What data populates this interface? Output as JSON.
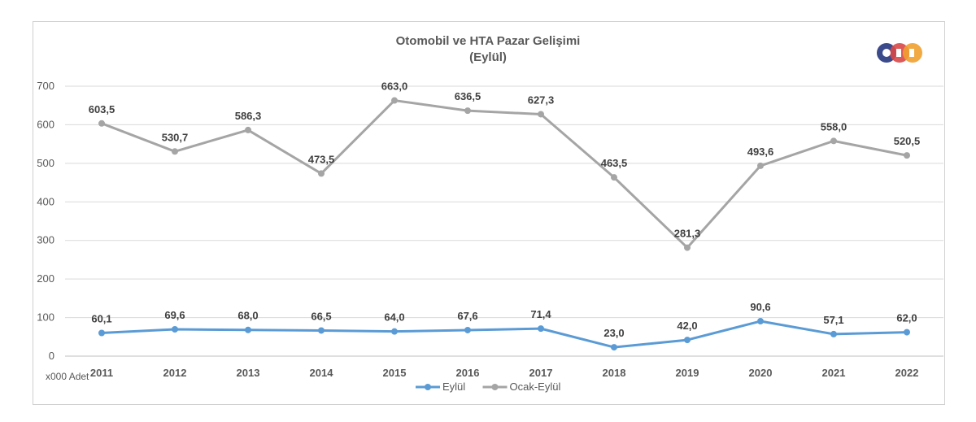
{
  "chart_data": {
    "type": "line",
    "title": "Otomobil ve HTA Pazar Gelişimi",
    "subtitle": "(Eylül)",
    "categories": [
      "2011",
      "2012",
      "2013",
      "2014",
      "2015",
      "2016",
      "2017",
      "2018",
      "2019",
      "2020",
      "2021",
      "2022"
    ],
    "series": [
      {
        "name": "Eylül",
        "color": "#5b9bd5",
        "values": [
          60.1,
          69.6,
          68.0,
          66.5,
          64.0,
          67.6,
          71.4,
          23.0,
          42.0,
          90.6,
          57.1,
          62.0
        ],
        "labels": [
          "60,1",
          "69,6",
          "68,0",
          "66,5",
          "64,0",
          "67,6",
          "71,4",
          "23,0",
          "42,0",
          "90,6",
          "57,1",
          "62,0"
        ]
      },
      {
        "name": "Ocak-Eylül",
        "color": "#a5a5a5",
        "values": [
          603.5,
          530.7,
          586.3,
          473.5,
          663.0,
          636.5,
          627.3,
          463.5,
          281.3,
          493.6,
          558.0,
          520.5
        ],
        "labels": [
          "603,5",
          "530,7",
          "586,3",
          "473,5",
          "663,0",
          "636,5",
          "627,3",
          "463,5",
          "281,3",
          "493,6",
          "558,0",
          "520,5"
        ]
      }
    ],
    "ylim": [
      0,
      700
    ],
    "yticks": [
      "0",
      "100",
      "200",
      "300",
      "400",
      "500",
      "600",
      "700"
    ],
    "ytick_values": [
      0,
      100,
      200,
      300,
      400,
      500,
      600,
      700
    ],
    "ylabel": "x000 Adet",
    "xlabel": "",
    "grid": true,
    "legend": "bottom"
  },
  "logo": {
    "name": "ODD",
    "colors": [
      "#3b4a8a",
      "#d94848",
      "#f0a030"
    ]
  }
}
